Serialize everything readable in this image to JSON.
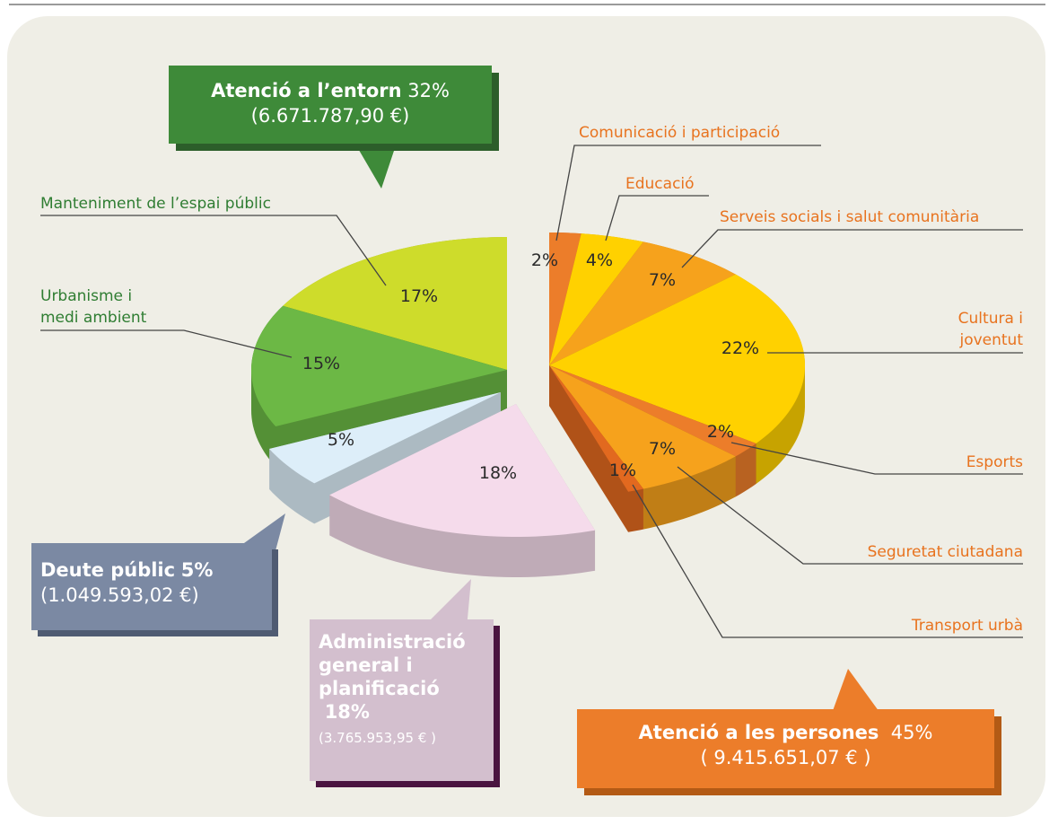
{
  "chart_data": {
    "type": "pie",
    "categories": [
      "Comunicació i participació",
      "Educació",
      "Serveis socials i salut comunitària",
      "Cultura i joventut",
      "Esports",
      "Seguretat ciutadana",
      "Transport urbà",
      "Administració general i planificació",
      "Deute públic",
      "Urbanisme i medi ambient",
      "Manteniment de l’espai públic"
    ],
    "values": [
      2,
      4,
      7,
      22,
      2,
      7,
      1,
      18,
      5,
      15,
      17
    ],
    "value_labels": [
      "2%",
      "4%",
      "7%",
      "22%",
      "2%",
      "7%",
      "1%",
      "18%",
      "5%",
      "15%",
      "17%"
    ],
    "colors": [
      "#ec7d2a",
      "#ffd100",
      "#f6a21c",
      "#ffd100",
      "#ec7d2a",
      "#f6a21c",
      "#e2691f",
      "#f5dbeb",
      "#ddeef9",
      "#6cb845",
      "#cedc2b"
    ],
    "groups": [
      {
        "name": "Atenció a l’entorn",
        "label": "32%",
        "amount": "(6.671.787,90 €)"
      },
      {
        "name": "Atenció a les persones",
        "label": "45%",
        "amount": "( 9.415.651,07 € )"
      },
      {
        "name": "Deute públic",
        "label": "5%",
        "amount": "(1.049.593,02 €)"
      },
      {
        "name": "Administració general i planificació",
        "label": "18%",
        "amount": "(3.765.953,95 € )"
      }
    ]
  }
}
